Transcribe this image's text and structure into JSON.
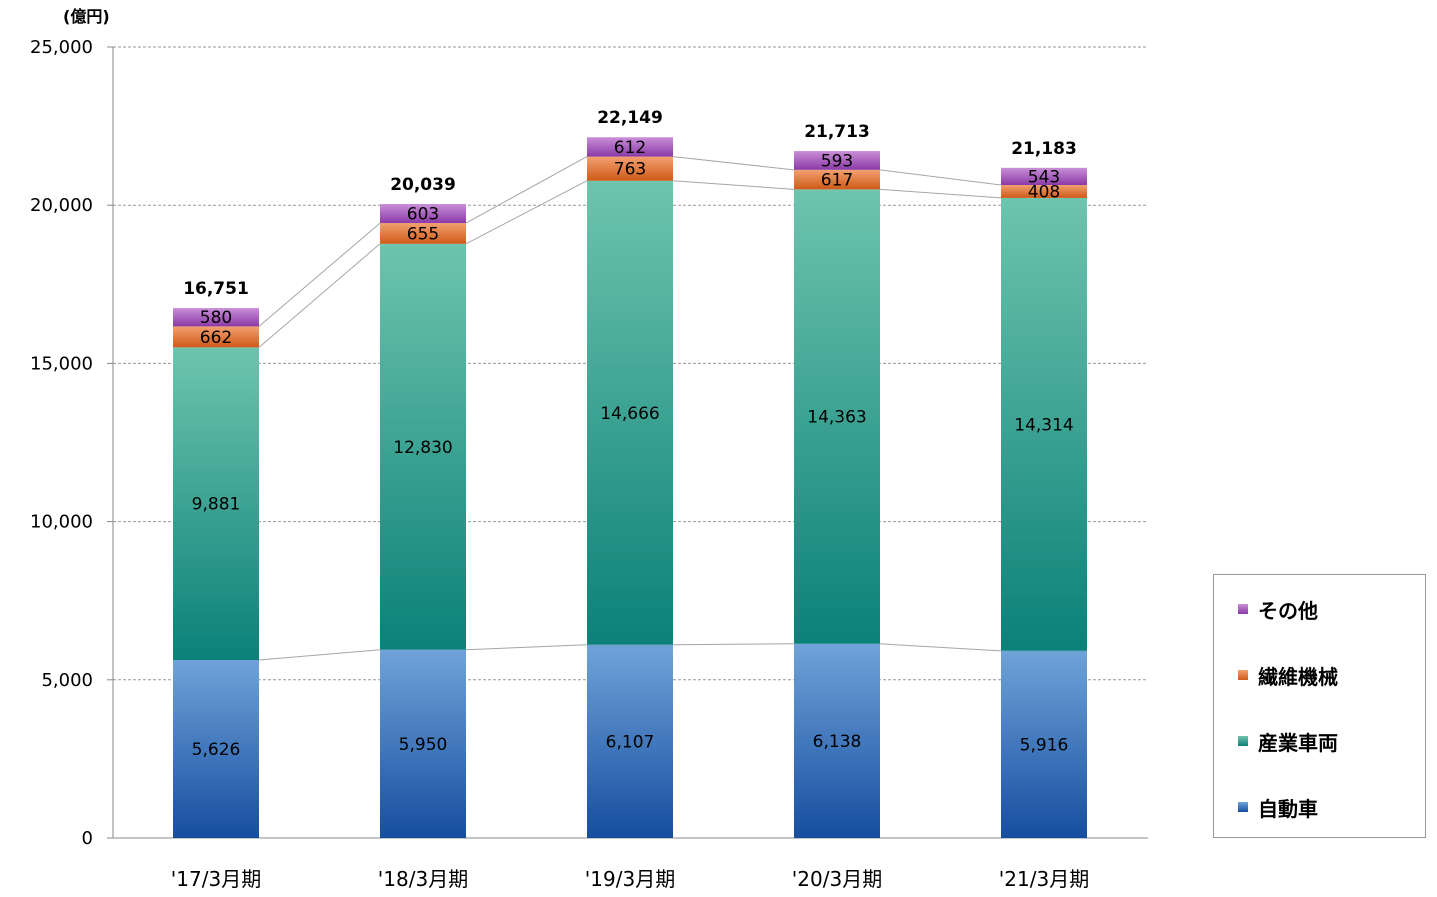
{
  "chart_data": {
    "type": "bar",
    "stacked": true,
    "unit_label": "(億円)",
    "categories": [
      "'17/3月期",
      "'18/3月期",
      "'19/3月期",
      "'20/3月期",
      "'21/3月期"
    ],
    "series": [
      {
        "name": "自動車",
        "values": [
          5626,
          5950,
          6107,
          6138,
          5916
        ],
        "labels": [
          "5,626",
          "5,950",
          "6,107",
          "6,138",
          "5,916"
        ],
        "color_top": "#6fa3d8",
        "color_bottom": "#164ea0"
      },
      {
        "name": "産業車両",
        "values": [
          9881,
          12830,
          14666,
          14363,
          14314
        ],
        "labels": [
          "9,881",
          "12,830",
          "14,666",
          "14,363",
          "14,314"
        ],
        "color_top": "#6ec4ad",
        "color_bottom": "#0b8179"
      },
      {
        "name": "繊維機械",
        "values": [
          662,
          655,
          763,
          617,
          408
        ],
        "labels": [
          "662",
          "655",
          "763",
          "617",
          "408"
        ],
        "color_top": "#f3a070",
        "color_bottom": "#cf5a18"
      },
      {
        "name": "その他",
        "values": [
          580,
          603,
          612,
          593,
          543
        ],
        "labels": [
          "580",
          "603",
          "612",
          "593",
          "543"
        ],
        "color_top": "#c98fd8",
        "color_bottom": "#8a3aa6"
      }
    ],
    "totals": [
      "16,751",
      "20,039",
      "22,149",
      "21,713",
      "21,183"
    ],
    "ylim": [
      0,
      25000
    ],
    "yticks": [
      0,
      5000,
      10000,
      15000,
      20000,
      25000
    ],
    "ytick_labels": [
      "0",
      "5,000",
      "10,000",
      "15,000",
      "20,000",
      "25,000"
    ],
    "grid": true,
    "legend_position": "bottom-right",
    "legend_order": [
      "その他",
      "繊維機械",
      "産業車両",
      "自動車"
    ]
  }
}
